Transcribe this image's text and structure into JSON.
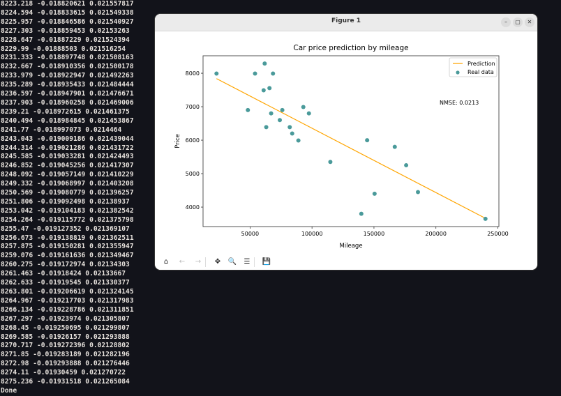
{
  "terminal": {
    "lines": [
      "8223.218 -0.018820621 0.021557817",
      "8224.594 -0.018833615 0.021549338",
      "8225.957 -0.018846586 0.021540927",
      "8227.303 -0.018859453 0.02153263",
      "8228.647 -0.01887229 0.021524394",
      "8229.99 -0.01888503 0.021516254",
      "8231.333 -0.018897748 0.021508163",
      "8232.667 -0.018910356 0.021500178",
      "8233.979 -0.018922947 0.021492263",
      "8235.289 -0.018935433 0.021484444",
      "8236.597 -0.018947901 0.021476671",
      "8237.903 -0.018960258 0.021469006",
      "8239.21 -0.018972615 0.021461375",
      "8240.494 -0.018984845 0.021453867",
      "8241.77 -0.018997073 0.0214464",
      "8243.043 -0.019009186 0.021439044",
      "8244.314 -0.019021286 0.021431722",
      "8245.585 -0.019033281 0.021424493",
      "8246.852 -0.019045256 0.021417307",
      "8248.092 -0.019057149 0.021410229",
      "8249.332 -0.019068997 0.021403208",
      "8250.569 -0.019080779 0.021396257",
      "8251.806 -0.019092498 0.02138937",
      "8253.042 -0.019104183 0.021382542",
      "8254.264 -0.019115772 0.021375798",
      "8255.47 -0.019127352 0.021369107",
      "8256.673 -0.019138819 0.021362511",
      "8257.875 -0.019150281 0.021355947",
      "8259.076 -0.019161636 0.021349467",
      "8260.275 -0.019172974 0.02134303",
      "8261.463 -0.01918424 0.02133667",
      "8262.633 -0.01919545 0.021330377",
      "8263.801 -0.019206619 0.021324145",
      "8264.967 -0.019217703 0.021317983",
      "8266.134 -0.019228786 0.021311851",
      "8267.297 -0.01923974 0.021305807",
      "8268.45 -0.019250695 0.021299807",
      "8269.585 -0.01926157 0.021293888",
      "8270.717 -0.019272396 0.02128802",
      "8271.85 -0.019283189 0.021282196",
      "8272.98 -0.019293888 0.021276446",
      "8274.11 -0.01930459 0.021270722",
      "8275.236 -0.01931518 0.021265084",
      "Done"
    ]
  },
  "window": {
    "title": "Figure 1",
    "controls": {
      "minimize": "–",
      "maximize": "▢",
      "close": "✕"
    },
    "toolbar": [
      {
        "name": "home-icon",
        "glyph": "⌂",
        "enabled": true
      },
      {
        "name": "back-icon",
        "glyph": "←",
        "enabled": false
      },
      {
        "name": "forward-icon",
        "glyph": "→",
        "enabled": false
      },
      {
        "name": "pan-icon",
        "glyph": "✥",
        "enabled": true
      },
      {
        "name": "zoom-icon",
        "glyph": "🔍",
        "enabled": true
      },
      {
        "name": "configure-subplots-icon",
        "glyph": "☰",
        "enabled": true
      },
      {
        "name": "save-icon",
        "glyph": "💾",
        "enabled": true
      }
    ]
  },
  "chart_data": {
    "type": "scatter",
    "title": "Car price prediction by mileage",
    "xlabel": "Mileage",
    "ylabel": "Price",
    "xlim": [
      12044,
      250855
    ],
    "ylim": [
      3418,
      8522
    ],
    "xticks": [
      50000,
      100000,
      150000,
      200000,
      250000
    ],
    "yticks": [
      4000,
      5000,
      6000,
      7000,
      8000
    ],
    "grid": false,
    "legend_placement": "top-right",
    "annotation": "NMSE: 0.0213",
    "series": [
      {
        "name": "Prediction",
        "kind": "line",
        "color": "#ffa500",
        "x": [
          22899,
          240000
        ],
        "y": [
          7840,
          3665
        ]
      },
      {
        "name": "Real data",
        "kind": "scatter",
        "color": "#4a9a9a",
        "x": [
          240000,
          139800,
          150500,
          185530,
          176000,
          114800,
          166800,
          89000,
          144500,
          84000,
          82029,
          63060,
          74000,
          97500,
          67000,
          76025,
          48235,
          93000,
          60949,
          65674,
          54000,
          68500,
          22899,
          61789
        ],
        "y": [
          3650,
          3800,
          4400,
          4450,
          5250,
          5350,
          5800,
          5990,
          5999,
          6200,
          6390,
          6390,
          6600,
          6800,
          6800,
          6900,
          6900,
          6990,
          7490,
          7555,
          7990,
          7990,
          7990,
          8290
        ]
      }
    ]
  }
}
